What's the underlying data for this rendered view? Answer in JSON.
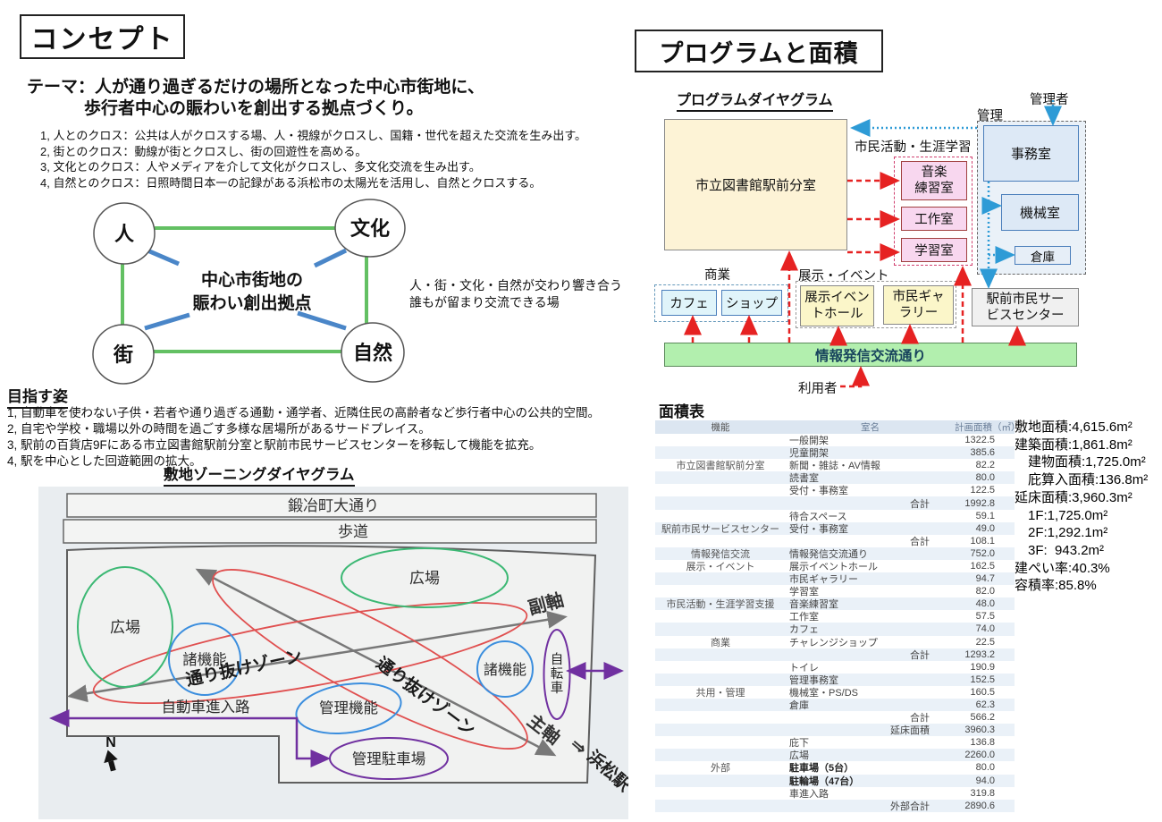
{
  "concept": {
    "title": "コンセプト",
    "theme_line1": "テーマ：人が通り過ぎるだけの場所となった中心市街地に、",
    "theme_line2": "歩行者中心の賑わいを創出する拠点づくり。",
    "points": [
      "1, 人とのクロス：公共は人がクロスする場、人・視線がクロスし、国籍・世代を超えた交流を生み出す。",
      "2, 街とのクロス：動線が街とクロスし、街の回遊性を高める。",
      "3, 文化とのクロス：人やメディアを介して文化がクロスし、多文化交流を生み出す。",
      "4, 自然とのクロス：日照時間日本一の記録がある浜松市の太陽光を活用し、自然とクロスする。"
    ],
    "diagram": {
      "node_person": "人",
      "node_culture": "文化",
      "node_town": "街",
      "node_nature": "自然",
      "center_line1": "中心市街地の",
      "center_line2": "賑わい創出拠点",
      "note_line1": "人・街・文化・自然が交わり響き合う",
      "note_line2": "誰もが留まり交流できる場"
    },
    "goal_heading": "目指す姿",
    "goal_points": [
      "1, 自動車を使わない子供・若者や通り過ぎる通勤・通学者、近隣住民の高齢者など歩行者中心の公共的空間。",
      "2, 自宅や学校・職場以外の時間を過ごす多様な居場所があるサードプレイス。",
      "3, 駅前の百貨店9Fにある市立図書館駅前分室と駅前市民サービスセンターを移転して機能を拡充。",
      "4, 駅を中心とした回遊範囲の拡大。"
    ]
  },
  "zoning": {
    "heading": "敷地ゾーニングダイヤグラム",
    "street": "鍛冶町大通り",
    "sidewalk": "歩道",
    "plaza_left": "広場",
    "plaza_right": "広場",
    "functions_left": "諸機能",
    "functions_right": "諸機能",
    "pass_zone_a": "通り抜けゾーン",
    "pass_zone_b": "通り抜けゾーン",
    "sub_axis": "副軸",
    "main_axis": "主軸",
    "axis_arrow": "⇒",
    "station": "浜松駅",
    "car_entry": "自動車進入路",
    "mgmt_function": "管理機能",
    "mgmt_parking": "管理駐車場",
    "bicycle": "自\n転\n車",
    "north": "N"
  },
  "program": {
    "title": "プログラムと面積",
    "diagram_heading": "プログラムダイヤグラム",
    "labels": {
      "manager": "管理者",
      "management": "管理",
      "civic": "市民活動・生涯学習",
      "commerce": "商業",
      "exhibit": "展示・イベント",
      "users": "利用者"
    },
    "boxes": {
      "library": "市立図書館駅前分室",
      "music": "音楽\n練習室",
      "craft": "工作室",
      "study": "学習室",
      "office": "事務室",
      "machine": "機械室",
      "storage": "倉庫",
      "cafe": "カフェ",
      "shop": "ショップ",
      "hall": "展示イベン\nトホール",
      "gallery": "市民ギャ\nラリー",
      "service": "駅前市民サー\nビスセンター",
      "street": "情報発信交流通り"
    }
  },
  "area": {
    "heading": "面積表",
    "columns": [
      "機能",
      "室名",
      "計画面積（㎡）"
    ],
    "rows": [
      {
        "f": "",
        "r": "一般開架",
        "v": "1322.5"
      },
      {
        "f": "",
        "r": "児童開架",
        "v": "385.6"
      },
      {
        "f": "市立図書館駅前分室",
        "r": "新聞・雑誌・AV情報",
        "v": "82.2"
      },
      {
        "f": "",
        "r": "読書室",
        "v": "80.0"
      },
      {
        "f": "",
        "r": "受付・事務室",
        "v": "122.5"
      },
      {
        "f": "",
        "r": "合計",
        "v": "1992.8",
        "sum": true
      },
      {
        "f": "",
        "r": "待合スペース",
        "v": "59.1"
      },
      {
        "f": "駅前市民サービスセンター",
        "r": "受付・事務室",
        "v": "49.0"
      },
      {
        "f": "",
        "r": "合計",
        "v": "108.1",
        "sum": true
      },
      {
        "f": "情報発信交流",
        "r": "情報発信交流通り",
        "v": "752.0"
      },
      {
        "f": "展示・イベント",
        "r": "展示イベントホール",
        "v": "162.5"
      },
      {
        "f": "",
        "r": "市民ギャラリー",
        "v": "94.7"
      },
      {
        "f": "",
        "r": "学習室",
        "v": "82.0"
      },
      {
        "f": "市民活動・生涯学習支援",
        "r": "音楽練習室",
        "v": "48.0"
      },
      {
        "f": "",
        "r": "工作室",
        "v": "57.5"
      },
      {
        "f": "",
        "r": "カフェ",
        "v": "74.0"
      },
      {
        "f": "商業",
        "r": "チャレンジショップ",
        "v": "22.5"
      },
      {
        "f": "",
        "r": "合計",
        "v": "1293.2",
        "sum": true
      },
      {
        "f": "",
        "r": "トイレ",
        "v": "190.9"
      },
      {
        "f": "",
        "r": "管理事務室",
        "v": "152.5"
      },
      {
        "f": "共用・管理",
        "r": "機械室・PS/DS",
        "v": "160.5"
      },
      {
        "f": "",
        "r": "倉庫",
        "v": "62.3"
      },
      {
        "f": "",
        "r": "合計",
        "v": "566.2",
        "sum": true
      },
      {
        "f": "",
        "r": "延床面積",
        "v": "3960.3",
        "sum": true
      },
      {
        "f": "",
        "r": "庇下",
        "v": "136.8"
      },
      {
        "f": "",
        "r": "広場",
        "v": "2260.0"
      },
      {
        "f": "外部",
        "r": "駐車場（5台）",
        "v": "80.0",
        "bold": true
      },
      {
        "f": "",
        "r": "駐輪場（47台）",
        "v": "94.0",
        "bold": true
      },
      {
        "f": "",
        "r": "車進入路",
        "v": "319.8"
      },
      {
        "f": "",
        "r": "外部合計",
        "v": "2890.6",
        "sum": true
      }
    ],
    "summary": [
      "敷地面積:4,615.6m²",
      "建築面積:1,861.8m²",
      "　建物面積:1,725.0m²",
      "　庇算入面積:136.8m²",
      "延床面積:3,960.3m²",
      "　1F:1,725.0m²",
      "　2F:1,292.1m²",
      "　3F:  943.2m²",
      "建ぺい率:40.3%",
      "容積率:85.8%"
    ]
  },
  "colors": {
    "green_line": "#63c063",
    "blue_line": "#4a86c8",
    "red_dashed": "#e62222",
    "blue_dotted": "#2e9bd6",
    "purple": "#7030a0",
    "axis_gray": "#787878",
    "green_bar_bg": "#b2efae",
    "library_bg": "#fdf3d6",
    "pink_bg": "#f8d7ef",
    "mgmt_bg": "#dde9f6",
    "yellow_bg": "#fbf6c9",
    "table_band": "#eaf1f8"
  }
}
